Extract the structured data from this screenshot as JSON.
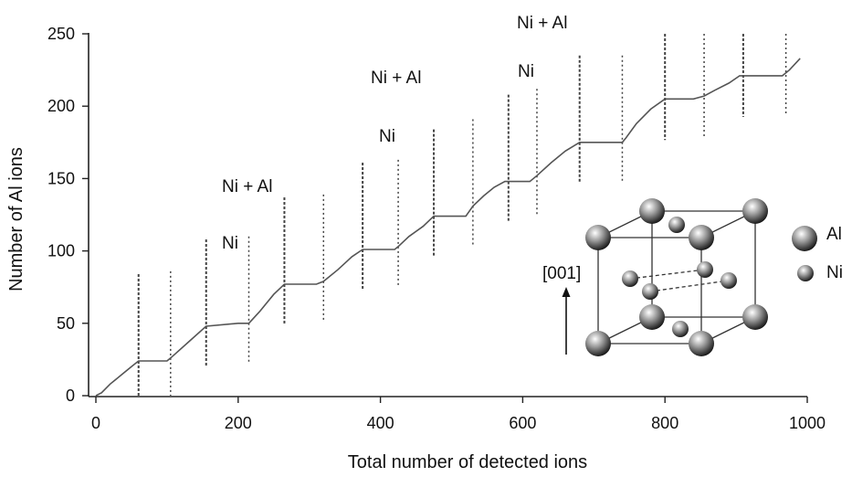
{
  "chart_data": {
    "type": "line",
    "title": "",
    "xlabel": "Total number of detected ions",
    "ylabel": "Number of Al ions",
    "xlim": [
      0,
      1000
    ],
    "ylim": [
      0,
      250
    ],
    "x_ticks": [
      "0",
      "200",
      "400",
      "600",
      "800",
      "1000"
    ],
    "y_ticks": [
      "0",
      "50",
      "100",
      "150",
      "200",
      "250"
    ],
    "grid": false,
    "series": [
      {
        "x": [
          0,
          8,
          20,
          35,
          50,
          60,
          100,
          105,
          130,
          155,
          200,
          215,
          230,
          250,
          265,
          310,
          320,
          340,
          360,
          375,
          420,
          425,
          440,
          460,
          475,
          520,
          530,
          545,
          560,
          575,
          610,
          620,
          640,
          660,
          680,
          740,
          745,
          760,
          780,
          800,
          840,
          855,
          870,
          890,
          905,
          965,
          975,
          990
        ],
        "values": [
          0,
          2,
          8,
          14,
          20,
          24,
          24,
          26,
          37,
          48,
          50,
          50,
          58,
          70,
          77,
          77,
          79,
          87,
          96,
          101,
          101,
          103,
          110,
          117,
          124,
          124,
          131,
          138,
          144,
          148,
          148,
          152,
          161,
          169,
          175,
          175,
          178,
          188,
          198,
          205,
          205,
          207,
          211,
          216,
          221,
          221,
          225,
          233
        ]
      }
    ],
    "boundaries_x": [
      60,
      105,
      155,
      215,
      265,
      320,
      375,
      425,
      475,
      530,
      580,
      620,
      680,
      740,
      800,
      855,
      910,
      970
    ],
    "layer_labels": [
      {
        "ni_al": "Ni + Al",
        "ni": "Ni",
        "x": 200
      },
      {
        "ni_al": "Ni + Al",
        "ni": "Ni",
        "x": 420
      },
      {
        "ni_al": "Ni + Al",
        "ni": "Ni",
        "x": 600
      }
    ],
    "inset": {
      "direction_label": "[001]",
      "legend": [
        {
          "label": "Al"
        },
        {
          "label": "Ni"
        }
      ]
    }
  }
}
